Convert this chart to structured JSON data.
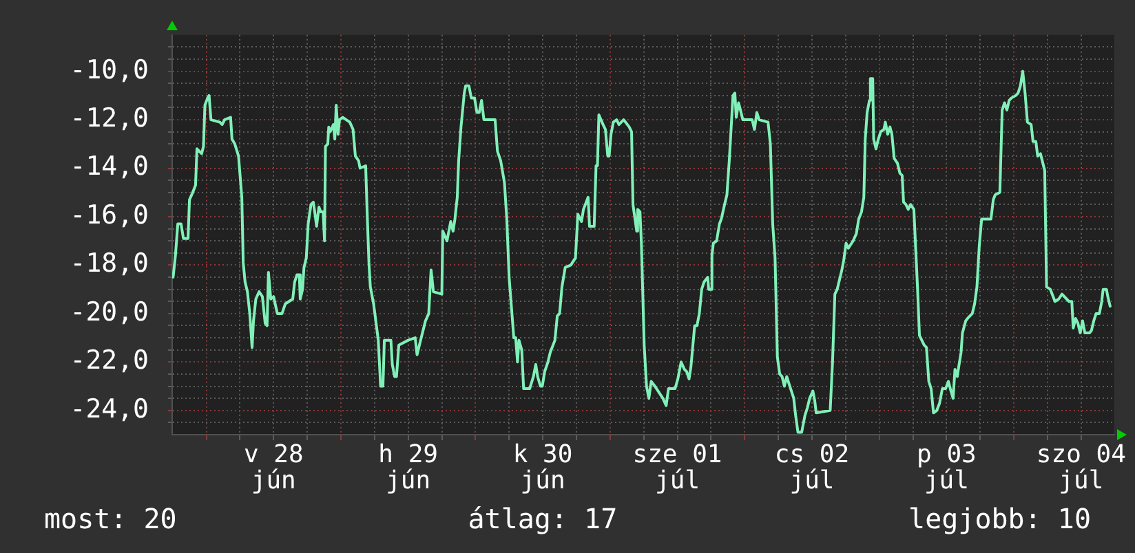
{
  "chart_data": {
    "type": "line",
    "color": "#80f0b8",
    "marker": "none",
    "line_style": "solid",
    "grid": true,
    "legend": false,
    "annotations": [
      "most: 20",
      "átlag: 17",
      "legjobb: 10"
    ],
    "xlim": [
      "--06-27T17:55",
      "--07-04T17:55"
    ],
    "xticks": [
      {
        "value": "--06-28T00:00",
        "label": null
      },
      {
        "value": "--06-28T06:00",
        "label": null
      },
      {
        "value": "--06-28T12:00",
        "label": "v 28 jún"
      },
      {
        "value": "--06-28T18:00",
        "label": null
      },
      {
        "value": "--06-29T00:00",
        "label": null
      },
      {
        "value": "--06-29T06:00",
        "label": null
      },
      {
        "value": "--06-29T12:00",
        "label": "h 29 jún"
      },
      {
        "value": "--06-29T18:00",
        "label": null
      },
      {
        "value": "--06-30T00:00",
        "label": null
      },
      {
        "value": "--06-30T06:00",
        "label": null
      },
      {
        "value": "--06-30T12:00",
        "label": "k 30 jún"
      },
      {
        "value": "--06-30T18:00",
        "label": null
      },
      {
        "value": "--07-01T00:00",
        "label": null
      },
      {
        "value": "--07-01T06:00",
        "label": null
      },
      {
        "value": "--07-01T12:00",
        "label": "sze 01 júl"
      },
      {
        "value": "--07-01T18:00",
        "label": null
      },
      {
        "value": "--07-02T00:00",
        "label": null
      },
      {
        "value": "--07-02T06:00",
        "label": null
      },
      {
        "value": "--07-02T12:00",
        "label": "cs 02 júl"
      },
      {
        "value": "--07-02T18:00",
        "label": null
      },
      {
        "value": "--07-03T00:00",
        "label": null
      },
      {
        "value": "--07-03T06:00",
        "label": null
      },
      {
        "value": "--07-03T12:00",
        "label": "p 03 júl"
      },
      {
        "value": "--07-03T18:00",
        "label": null
      },
      {
        "value": "--07-04T00:00",
        "label": null
      },
      {
        "value": "--07-04T06:00",
        "label": null
      },
      {
        "value": "--07-04T12:00",
        "label": "szo 04 júl"
      }
    ],
    "ylim": [
      -25,
      -8.5
    ],
    "yticks": [
      {
        "value": -24.5,
        "label": null
      },
      {
        "value": -24,
        "label": "-24,0"
      },
      {
        "value": -23.5,
        "label": null
      },
      {
        "value": -23,
        "label": null
      },
      {
        "value": -22.5,
        "label": null
      },
      {
        "value": -22,
        "label": "-22,0"
      },
      {
        "value": -21.5,
        "label": null
      },
      {
        "value": -21,
        "label": null
      },
      {
        "value": -20.5,
        "label": null
      },
      {
        "value": -20,
        "label": "-20,0"
      },
      {
        "value": -19.5,
        "label": null
      },
      {
        "value": -19,
        "label": null
      },
      {
        "value": -18.5,
        "label": null
      },
      {
        "value": -18,
        "label": "-18,0"
      },
      {
        "value": -17.5,
        "label": null
      },
      {
        "value": -17,
        "label": null
      },
      {
        "value": -16.5,
        "label": null
      },
      {
        "value": -16,
        "label": "-16,0"
      },
      {
        "value": -15.5,
        "label": null
      },
      {
        "value": -15,
        "label": null
      },
      {
        "value": -14.5,
        "label": null
      },
      {
        "value": -14,
        "label": "-14,0"
      },
      {
        "value": -13.5,
        "label": null
      },
      {
        "value": -13,
        "label": null
      },
      {
        "value": -12.5,
        "label": null
      },
      {
        "value": -12,
        "label": "-12,0"
      },
      {
        "value": -11.5,
        "label": null
      },
      {
        "value": -11,
        "label": null
      },
      {
        "value": -10.5,
        "label": null
      },
      {
        "value": -10,
        "label": "-10,0"
      },
      {
        "value": -9.5,
        "label": null
      },
      {
        "value": -9,
        "label": null
      }
    ],
    "x": [
      "--06-27T18:05",
      "--06-27T18:30",
      "--06-27T18:55",
      "--06-27T19:30",
      "--06-27T19:55",
      "--06-27T20:45",
      "--06-27T21:00",
      "--06-27T21:35",
      "--06-27T22:05",
      "--06-27T22:20",
      "--06-27T23:10",
      "--06-27T23:30",
      "--06-27T23:45",
      "--06-28T00:15",
      "--06-28T00:30",
      "--06-28T00:50",
      "--06-28T02:25",
      "--06-28T02:50",
      "--06-28T03:15",
      "--06-28T04:20",
      "--06-28T04:35",
      "--06-28T05:05",
      "--06-28T05:45",
      "--06-28T06:20",
      "--06-28T06:35",
      "--06-28T06:55",
      "--06-28T07:20",
      "--06-28T07:45",
      "--06-28T08:10",
      "--06-28T08:25",
      "--06-28T08:50",
      "--06-28T09:25",
      "--06-28T10:00",
      "--06-28T10:30",
      "--06-28T10:50",
      "--06-28T11:05",
      "--06-28T11:30",
      "--06-28T12:00",
      "--06-28T12:40",
      "--06-28T13:30",
      "--06-28T14:05",
      "--06-28T14:45",
      "--06-28T15:25",
      "--06-28T15:45",
      "--06-28T16:10",
      "--06-28T16:35",
      "--06-28T16:45",
      "--06-28T17:10",
      "--06-28T17:25",
      "--06-28T17:50",
      "--06-28T18:10",
      "--06-28T18:40",
      "--06-28T19:05",
      "--06-28T19:20",
      "--06-28T19:40",
      "--06-28T20:05",
      "--06-28T20:25",
      "--06-28T20:50",
      "--06-28T21:05",
      "--06-28T21:15",
      "--06-28T21:40",
      "--06-28T21:50",
      "--06-28T22:05",
      "--06-28T22:40",
      "--06-28T22:55",
      "--06-28T23:10",
      "--06-28T23:30",
      "--06-28T23:45",
      "--06-29T00:20",
      "--06-29T01:35",
      "--06-29T02:10",
      "--06-29T02:35",
      "--06-29T03:10",
      "--06-29T03:25",
      "--06-29T04:25",
      "--06-29T04:40",
      "--06-29T05:00",
      "--06-29T05:15",
      "--06-29T05:50",
      "--06-29T06:40",
      "--06-29T07:05",
      "--06-29T07:30",
      "--06-29T07:45",
      "--06-29T08:55",
      "--06-29T09:10",
      "--06-29T09:35",
      "--06-29T09:55",
      "--06-29T10:20",
      "--06-29T12:00",
      "--06-29T13:15",
      "--06-29T13:35",
      "--06-29T14:00",
      "--06-29T15:05",
      "--06-29T15:40",
      "--06-29T16:05",
      "--06-29T16:30",
      "--06-29T18:00",
      "--06-29T18:10",
      "--06-29T18:55",
      "--06-29T19:35",
      "--06-29T20:00",
      "--06-29T20:20",
      "--06-29T20:45",
      "--06-29T21:00",
      "--06-29T21:25",
      "--06-29T22:00",
      "--06-29T22:15",
      "--06-29T22:50",
      "--06-29T23:15",
      "--06-29T23:50",
      "--06-30T00:15",
      "--06-30T00:40",
      "--06-30T01:05",
      "--06-30T01:30",
      "--06-30T03:30",
      "--06-30T03:55",
      "--06-30T04:30",
      "--06-30T05:10",
      "--06-30T05:35",
      "--06-30T06:00",
      "--06-30T06:50",
      "--06-30T07:10",
      "--06-30T07:30",
      "--06-30T07:45",
      "--06-30T08:15",
      "--06-30T08:35",
      "--06-30T09:40",
      "--06-30T10:20",
      "--06-30T10:45",
      "--06-30T11:05",
      "--06-30T11:35",
      "--06-30T11:55",
      "--06-30T12:20",
      "--06-30T12:55",
      "--06-30T13:20",
      "--06-30T14:10",
      "--06-30T14:35",
      "--06-30T15:00",
      "--06-30T15:25",
      "--06-30T16:00",
      "--06-30T17:00",
      "--06-30T17:50",
      "--06-30T18:15",
      "--06-30T18:55",
      "--06-30T19:15",
      "--06-30T19:45",
      "--06-30T20:05",
      "--06-30T20:20",
      "--06-30T21:10",
      "--06-30T21:30",
      "--06-30T21:45",
      "--06-30T22:00",
      "--06-30T22:45",
      "--06-30T23:10",
      "--06-30T23:35",
      "--06-30T23:50",
      "--07-01T00:10",
      "--07-01T00:35",
      "--07-01T01:10",
      "--07-01T01:35",
      "--07-01T02:25",
      "--07-01T03:25",
      "--07-01T03:50",
      "--07-01T04:05",
      "--07-01T04:45",
      "--07-01T04:55",
      "--07-01T05:20",
      "--07-01T05:35",
      "--07-01T06:05",
      "--07-01T06:30",
      "--07-01T06:55",
      "--07-01T07:20",
      "--07-01T08:00",
      "--07-01T09:25",
      "--07-01T10:00",
      "--07-01T10:25",
      "--07-01T11:35",
      "--07-01T12:05",
      "--07-01T12:40",
      "--07-01T13:15",
      "--07-01T13:40",
      "--07-01T14:05",
      "--07-01T14:25",
      "--07-01T15:05",
      "--07-01T15:30",
      "--07-01T15:55",
      "--07-01T16:20",
      "--07-01T16:45",
      "--07-01T17:25",
      "--07-01T17:35",
      "--07-01T18:00",
      "--07-01T18:10",
      "--07-01T18:25",
      "--07-01T19:00",
      "--07-01T19:30",
      "--07-01T19:50",
      "--07-01T20:25",
      "--07-01T20:50",
      "--07-01T21:15",
      "--07-01T21:30",
      "--07-01T21:55",
      "--07-01T22:15",
      "--07-01T22:30",
      "--07-01T22:55",
      "--07-01T23:15",
      "--07-01T23:40",
      "--07-02T01:20",
      "--07-02T01:45",
      "--07-02T02:10",
      "--07-02T02:35",
      "--07-02T04:10",
      "--07-02T04:35",
      "--07-02T05:00",
      "--07-02T05:25",
      "--07-02T05:50",
      "--07-02T06:15",
      "--07-02T06:40",
      "--07-02T07:05",
      "--07-02T07:30",
      "--07-02T07:55",
      "--07-02T08:45",
      "--07-02T09:05",
      "--07-02T09:30",
      "--07-02T10:10",
      "--07-02T10:45",
      "--07-02T11:10",
      "--07-02T11:35",
      "--07-02T12:10",
      "--07-02T12:30",
      "--07-02T12:45",
      "--07-02T15:15",
      "--07-02T15:40",
      "--07-02T16:05",
      "--07-02T16:30",
      "--07-02T16:55",
      "--07-02T17:20",
      "--07-02T17:40",
      "--07-02T18:05",
      "--07-02T18:30",
      "--07-02T19:20",
      "--07-02T19:55",
      "--07-02T20:20",
      "--07-02T20:50",
      "--07-02T21:15",
      "--07-02T21:30",
      "--07-02T21:50",
      "--07-02T22:15",
      "--07-02T22:25",
      "--07-02T22:50",
      "--07-02T23:00",
      "--07-02T23:25",
      "--07-02T23:50",
      "--07-03T00:15",
      "--07-03T00:50",
      "--07-03T01:05",
      "--07-03T01:30",
      "--07-03T01:55",
      "--07-03T02:15",
      "--07-03T02:40",
      "--07-03T03:15",
      "--07-03T03:40",
      "--07-03T04:05",
      "--07-03T04:20",
      "--07-03T04:45",
      "--07-03T05:10",
      "--07-03T05:35",
      "--07-03T06:10",
      "--07-03T06:50",
      "--07-03T07:10",
      "--07-03T08:00",
      "--07-03T08:25",
      "--07-03T08:50",
      "--07-03T09:15",
      "--07-03T09:40",
      "--07-03T10:15",
      "--07-03T10:45",
      "--07-03T11:15",
      "--07-03T11:50",
      "--07-03T12:20",
      "--07-03T12:40",
      "--07-03T13:10",
      "--07-03T13:30",
      "--07-03T13:55",
      "--07-03T14:10",
      "--07-03T14:35",
      "--07-03T14:50",
      "--07-03T15:25",
      "--07-03T15:45",
      "--07-03T16:35",
      "--07-03T17:00",
      "--07-03T17:25",
      "--07-03T17:50",
      "--07-03T18:15",
      "--07-03T19:55",
      "--07-03T20:20",
      "--07-03T20:40",
      "--07-03T21:30",
      "--07-03T21:55",
      "--07-03T22:20",
      "--07-03T22:45",
      "--07-03T23:10",
      "--07-03T23:35",
      "--07-04T00:20",
      "--07-04T00:45",
      "--07-04T01:10",
      "--07-04T01:35",
      "--07-04T02:00",
      "--07-04T02:25",
      "--07-04T03:05",
      "--07-04T03:25",
      "--07-04T03:55",
      "--07-04T04:15",
      "--07-04T04:45",
      "--07-04T05:30",
      "--07-04T05:50",
      "--07-04T06:30",
      "--07-04T07:20",
      "--07-04T08:00",
      "--07-04T08:35",
      "--07-04T09:25",
      "--07-04T09:50",
      "--07-04T10:20",
      "--07-04T10:35",
      "--07-04T11:00",
      "--07-04T11:25",
      "--07-04T11:50",
      "--07-04T12:15",
      "--07-04T12:40",
      "--07-04T13:30",
      "--07-04T13:50",
      "--07-04T14:15",
      "--07-04T14:40",
      "--07-04T15:15",
      "--07-04T15:40",
      "--07-04T15:55",
      "--07-04T16:30",
      "--07-04T16:45",
      "--07-04T17:10"
    ],
    "values": [
      -18.5,
      -17.6,
      -16.3,
      -16.3,
      -16.9,
      -16.9,
      -15.3,
      -15.0,
      -14.7,
      -13.2,
      -13.4,
      -13.1,
      -11.4,
      -11.1,
      -11.0,
      -12.0,
      -12.1,
      -12.2,
      -12.0,
      -11.9,
      -12.8,
      -13.0,
      -13.5,
      -15.2,
      -17.9,
      -18.7,
      -19.1,
      -20.0,
      -21.4,
      -20.3,
      -19.4,
      -19.1,
      -19.3,
      -20.4,
      -20.5,
      -18.3,
      -19.4,
      -19.3,
      -20.0,
      -20.0,
      -19.6,
      -19.5,
      -19.4,
      -18.7,
      -18.4,
      -18.4,
      -19.4,
      -19.0,
      -18.1,
      -17.7,
      -16.3,
      -15.5,
      -15.4,
      -15.8,
      -16.4,
      -15.6,
      -15.8,
      -15.8,
      -17.0,
      -13.1,
      -13.0,
      -12.3,
      -12.5,
      -12.2,
      -12.8,
      -11.4,
      -12.6,
      -12.0,
      -11.9,
      -12.1,
      -12.4,
      -13.5,
      -13.7,
      -14.0,
      -13.9,
      -15.7,
      -17.9,
      -18.9,
      -19.6,
      -21.1,
      -23.0,
      -23.0,
      -21.1,
      -21.1,
      -22.1,
      -22.6,
      -22.6,
      -21.3,
      -21.1,
      -21.0,
      -21.7,
      -21.3,
      -20.3,
      -20.0,
      -18.2,
      -19.1,
      -19.2,
      -16.6,
      -17.0,
      -16.2,
      -16.6,
      -16.1,
      -15.2,
      -13.7,
      -12.3,
      -10.9,
      -10.6,
      -10.6,
      -11.1,
      -11.1,
      -11.7,
      -11.7,
      -11.2,
      -12.0,
      -12.0,
      -13.3,
      -13.7,
      -14.6,
      -16.1,
      -18.5,
      -21.0,
      -21.0,
      -22.0,
      -21.1,
      -21.5,
      -23.1,
      -23.1,
      -22.6,
      -22.1,
      -22.6,
      -23.0,
      -23.0,
      -22.4,
      -22.0,
      -21.6,
      -21.1,
      -20.1,
      -20.0,
      -18.9,
      -18.1,
      -18.0,
      -17.7,
      -15.9,
      -16.2,
      -15.7,
      -15.4,
      -15.2,
      -16.4,
      -16.4,
      -13.9,
      -13.9,
      -11.8,
      -12.2,
      -12.4,
      -13.5,
      -13.5,
      -12.6,
      -12.1,
      -12.0,
      -12.2,
      -12.0,
      -12.3,
      -12.5,
      -15.5,
      -16.6,
      -15.7,
      -15.8,
      -17.1,
      -21.3,
      -23.0,
      -23.5,
      -22.8,
      -23.0,
      -23.5,
      -23.8,
      -23.1,
      -23.1,
      -22.7,
      -22.0,
      -22.3,
      -22.4,
      -22.7,
      -22.2,
      -20.5,
      -20.5,
      -20.0,
      -19.0,
      -18.7,
      -18.5,
      -19.0,
      -19.0,
      -17.6,
      -17.1,
      -17.0,
      -16.3,
      -16.1,
      -15.5,
      -15.1,
      -13.7,
      -12.7,
      -11.0,
      -10.9,
      -11.9,
      -11.3,
      -11.6,
      -12.0,
      -12.0,
      -12.4,
      -11.7,
      -12.0,
      -12.1,
      -13.0,
      -16.3,
      -17.7,
      -21.8,
      -22.5,
      -22.6,
      -23.0,
      -22.6,
      -22.9,
      -23.5,
      -24.2,
      -24.9,
      -24.9,
      -24.2,
      -23.9,
      -23.5,
      -23.2,
      -23.6,
      -24.1,
      -24.0,
      -22.0,
      -19.2,
      -19.0,
      -18.6,
      -18.2,
      -17.8,
      -17.1,
      -17.3,
      -17.0,
      -16.7,
      -16.1,
      -15.8,
      -15.2,
      -12.8,
      -11.7,
      -11.2,
      -10.3,
      -10.3,
      -12.8,
      -13.2,
      -12.8,
      -12.5,
      -12.4,
      -12.1,
      -12.6,
      -12.3,
      -12.6,
      -13.6,
      -13.8,
      -14.2,
      -14.3,
      -15.4,
      -15.5,
      -15.7,
      -15.5,
      -15.7,
      -19.0,
      -20.9,
      -21.3,
      -21.4,
      -22.8,
      -23.1,
      -24.1,
      -24.0,
      -23.7,
      -23.1,
      -23.1,
      -22.8,
      -23.1,
      -23.5,
      -22.3,
      -22.6,
      -22.2,
      -21.6,
      -20.8,
      -20.3,
      -20.2,
      -20.0,
      -19.6,
      -18.9,
      -17.2,
      -16.1,
      -16.1,
      -15.3,
      -15.1,
      -15.0,
      -11.6,
      -11.3,
      -11.6,
      -11.2,
      -11.1,
      -11.0,
      -10.9,
      -10.6,
      -10.0,
      -10.9,
      -12.1,
      -12.2,
      -12.9,
      -12.9,
      -13.5,
      -13.4,
      -14.1,
      -18.9,
      -19.0,
      -19.5,
      -19.4,
      -19.2,
      -19.4,
      -19.5,
      -19.5,
      -20.6,
      -20.2,
      -20.4,
      -20.8,
      -20.3,
      -20.8,
      -20.8,
      -20.7,
      -20.3,
      -20.0,
      -20.0,
      -19.5,
      -19.0,
      -19.0,
      -19.3,
      -19.7
    ]
  }
}
